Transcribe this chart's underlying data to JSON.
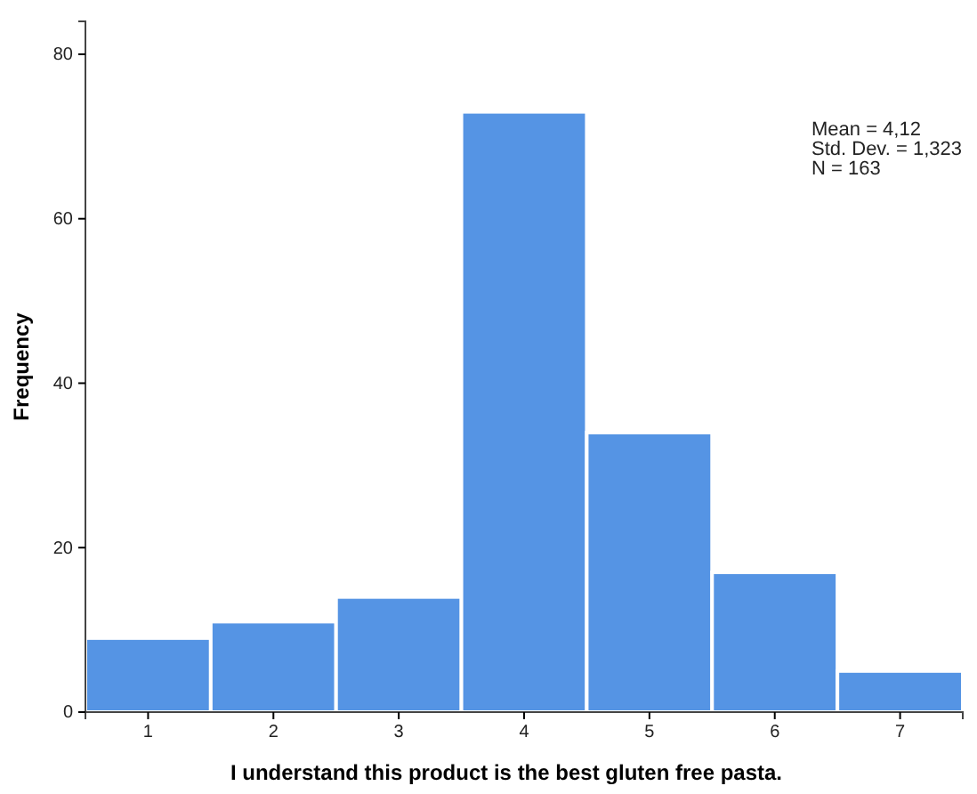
{
  "chart_data": {
    "type": "histogram",
    "xlabel": "I understand this product is the best gluten free pasta.",
    "ylabel": "Frequency",
    "bins": [
      0.5,
      1.5,
      2.5,
      3.5,
      4.5,
      5.5,
      6.5,
      7.5
    ],
    "values": [
      9,
      11,
      14,
      73,
      34,
      17,
      5
    ],
    "color": "#5594e4",
    "xlim": [
      0.5,
      7.5
    ],
    "xticks": [
      1,
      2,
      3,
      4,
      5,
      6,
      7
    ],
    "ylim": [
      0,
      84
    ],
    "yticks": [
      0,
      20,
      40,
      60,
      80
    ],
    "grid": false,
    "annotations": [
      "Mean = 4,12",
      "Std. Dev. = 1,323",
      "N = 163"
    ]
  }
}
